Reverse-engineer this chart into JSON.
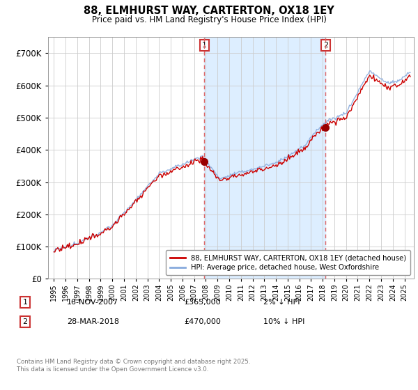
{
  "title": "88, ELMHURST WAY, CARTERTON, OX18 1EY",
  "subtitle": "Price paid vs. HM Land Registry's House Price Index (HPI)",
  "ylim": [
    0,
    750000
  ],
  "xlim_start": 1994.5,
  "xlim_end": 2025.8,
  "transaction1_date": 2007.88,
  "transaction1_price": 365000,
  "transaction1_text": "16-NOV-2007",
  "transaction1_hpi_diff": "2% ↓ HPI",
  "transaction2_date": 2018.24,
  "transaction2_price": 470000,
  "transaction2_text": "28-MAR-2018",
  "transaction2_hpi_diff": "10% ↓ HPI",
  "legend_line1": "88, ELMHURST WAY, CARTERTON, OX18 1EY (detached house)",
  "legend_line2": "HPI: Average price, detached house, West Oxfordshire",
  "footnote": "Contains HM Land Registry data © Crown copyright and database right 2025.\nThis data is licensed under the Open Government Licence v3.0.",
  "line_color_property": "#cc0000",
  "line_color_hpi": "#88aadd",
  "marker_color_property": "#990000",
  "transaction_line_color": "#dd6666",
  "shading_color": "#ddeeff",
  "background_color": "#ffffff",
  "grid_color": "#cccccc",
  "box_color": "#cc3333"
}
